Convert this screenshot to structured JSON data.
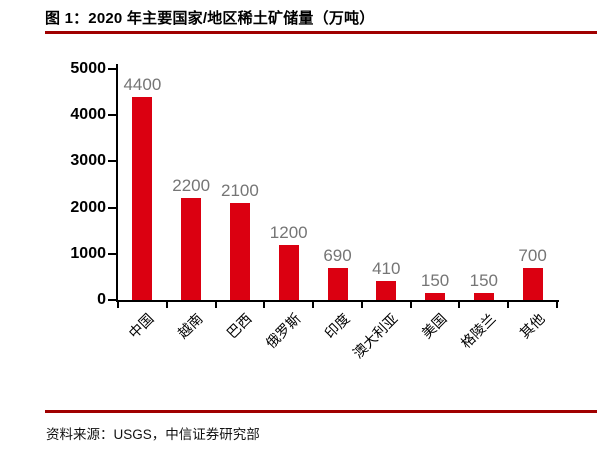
{
  "figure": {
    "title": "图 1：2020 年主要国家/地区稀土矿储量（万吨）",
    "source": "资料来源：USGS，中信证券研究部"
  },
  "colors": {
    "bar": "#DB0011",
    "rule": "#A00000",
    "value_label": "#757575",
    "axis": "#000000"
  },
  "chart_data": {
    "type": "bar",
    "title": "2020 年主要国家/地区稀土矿储量（万吨）",
    "categories": [
      "中国",
      "越南",
      "巴西",
      "俄罗斯",
      "印度",
      "澳大利亚",
      "美国",
      "格陵兰",
      "其他"
    ],
    "values": [
      4400,
      2200,
      2100,
      1200,
      690,
      410,
      150,
      150,
      700
    ],
    "xlabel": "",
    "ylabel": "",
    "ylim": [
      0,
      5000
    ],
    "yticks": [
      0,
      1000,
      2000,
      3000,
      4000,
      5000
    ],
    "grid": false,
    "legend": null,
    "value_labels": true,
    "category_label_rotation_deg": -45
  }
}
